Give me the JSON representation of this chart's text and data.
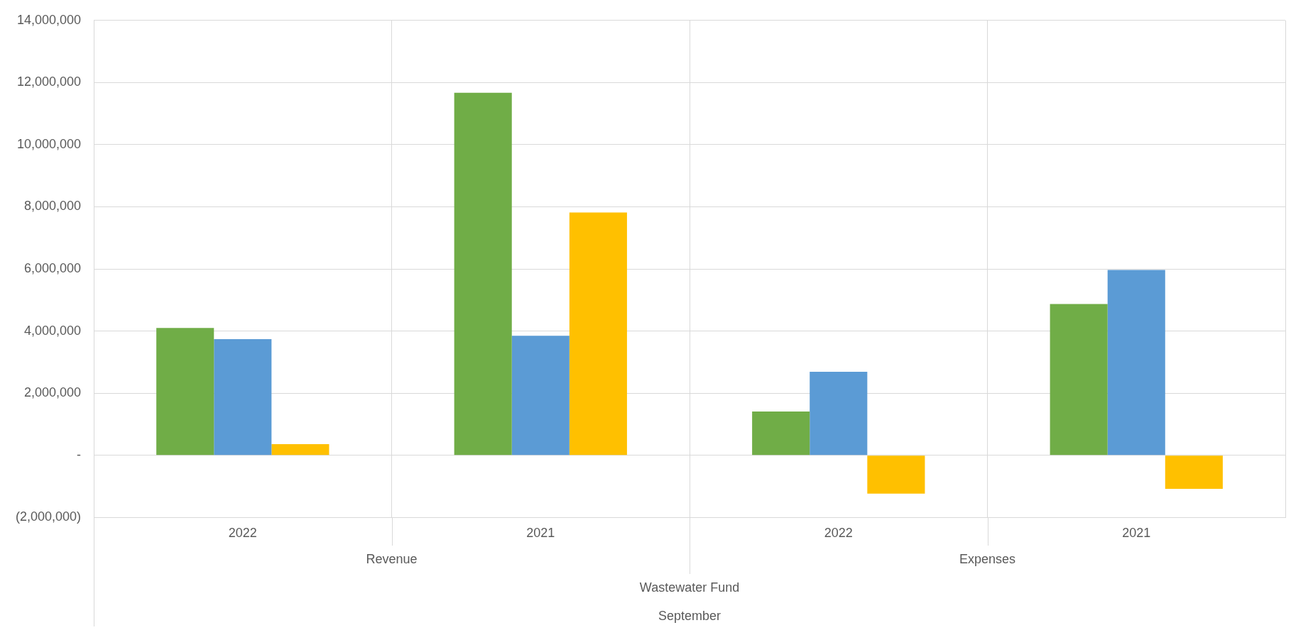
{
  "chart_data": {
    "type": "bar",
    "categories": [
      "2022",
      "2021",
      "2022",
      "2021"
    ],
    "series": [
      {
        "color": "#70ad47",
        "values": [
          4100000,
          11670000,
          1410000,
          4870000
        ]
      },
      {
        "color": "#5b9bd5",
        "values": [
          3740000,
          3850000,
          2690000,
          5970000
        ]
      },
      {
        "color": "#ffc000",
        "values": [
          360000,
          7820000,
          -1230000,
          -1080000
        ]
      }
    ],
    "ylim": [
      -2000000,
      14000000
    ],
    "yticks": [
      {
        "value": -2000000,
        "label": "(2,000,000)"
      },
      {
        "value": 0,
        "label": "-"
      },
      {
        "value": 2000000,
        "label": "2,000,000"
      },
      {
        "value": 4000000,
        "label": "4,000,000"
      },
      {
        "value": 6000000,
        "label": "6,000,000"
      },
      {
        "value": 8000000,
        "label": "8,000,000"
      },
      {
        "value": 10000000,
        "label": "10,000,000"
      },
      {
        "value": 12000000,
        "label": "12,000,000"
      },
      {
        "value": 14000000,
        "label": "14,000,000"
      }
    ],
    "annotations": [
      "Revenue",
      "Expenses",
      "Wastewater Fund",
      "September"
    ],
    "grid": true,
    "legend": false
  }
}
